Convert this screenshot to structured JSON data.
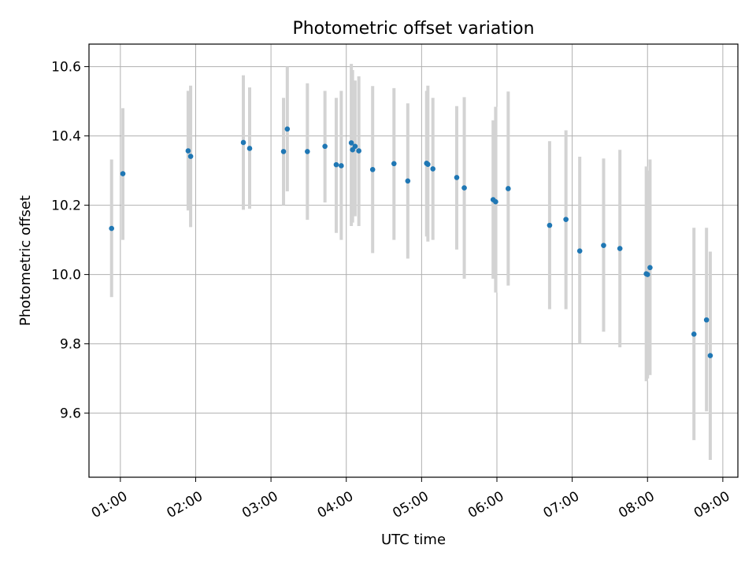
{
  "chart_data": {
    "type": "scatter",
    "title": "Photometric offset variation",
    "xlabel": "UTC time",
    "ylabel": "Photometric offset",
    "x_ticks": [
      "01:00",
      "02:00",
      "03:00",
      "04:00",
      "05:00",
      "06:00",
      "07:00",
      "08:00",
      "09:00"
    ],
    "y_ticks": [
      "9.6",
      "9.8",
      "10.0",
      "10.2",
      "10.4",
      "10.6"
    ],
    "xlim": [
      "00:35",
      "09:12"
    ],
    "ylim": [
      9.415,
      10.665
    ],
    "grid": true,
    "colors": {
      "points": "#1f77b4",
      "error_bars": "#d3d3d3",
      "grid": "#b0b0b0"
    },
    "points": [
      {
        "x": "00:53",
        "y": 10.133,
        "low": 9.935,
        "high": 10.332
      },
      {
        "x": "01:02",
        "y": 10.291,
        "low": 10.1,
        "high": 10.48
      },
      {
        "x": "01:54",
        "y": 10.357,
        "low": 10.185,
        "high": 10.53
      },
      {
        "x": "01:56",
        "y": 10.341,
        "low": 10.137,
        "high": 10.545
      },
      {
        "x": "02:38",
        "y": 10.381,
        "low": 10.187,
        "high": 10.575
      },
      {
        "x": "02:43",
        "y": 10.364,
        "low": 10.19,
        "high": 10.54
      },
      {
        "x": "03:10",
        "y": 10.355,
        "low": 10.2,
        "high": 10.51
      },
      {
        "x": "03:13",
        "y": 10.42,
        "low": 10.24,
        "high": 10.6
      },
      {
        "x": "03:29",
        "y": 10.355,
        "low": 10.158,
        "high": 10.552
      },
      {
        "x": "03:43",
        "y": 10.37,
        "low": 10.208,
        "high": 10.53
      },
      {
        "x": "03:52",
        "y": 10.317,
        "low": 10.12,
        "high": 10.51
      },
      {
        "x": "03:56",
        "y": 10.314,
        "low": 10.1,
        "high": 10.53
      },
      {
        "x": "04:04",
        "y": 10.38,
        "low": 10.14,
        "high": 10.608
      },
      {
        "x": "04:05",
        "y": 10.36,
        "low": 10.15,
        "high": 10.59
      },
      {
        "x": "04:07",
        "y": 10.37,
        "low": 10.168,
        "high": 10.56
      },
      {
        "x": "04:10",
        "y": 10.357,
        "low": 10.14,
        "high": 10.572
      },
      {
        "x": "04:21",
        "y": 10.303,
        "low": 10.062,
        "high": 10.544
      },
      {
        "x": "04:38",
        "y": 10.32,
        "low": 10.1,
        "high": 10.538
      },
      {
        "x": "04:49",
        "y": 10.27,
        "low": 10.046,
        "high": 10.494
      },
      {
        "x": "05:04",
        "y": 10.321,
        "low": 10.11,
        "high": 10.53
      },
      {
        "x": "05:05",
        "y": 10.318,
        "low": 10.095,
        "high": 10.545
      },
      {
        "x": "05:09",
        "y": 10.305,
        "low": 10.1,
        "high": 10.51
      },
      {
        "x": "05:28",
        "y": 10.28,
        "low": 10.072,
        "high": 10.486
      },
      {
        "x": "05:34",
        "y": 10.25,
        "low": 9.988,
        "high": 10.512
      },
      {
        "x": "05:57",
        "y": 10.216,
        "low": 9.988,
        "high": 10.445
      },
      {
        "x": "05:59",
        "y": 10.21,
        "low": 9.948,
        "high": 10.484
      },
      {
        "x": "06:09",
        "y": 10.248,
        "low": 9.968,
        "high": 10.528
      },
      {
        "x": "06:42",
        "y": 10.142,
        "low": 9.9,
        "high": 10.385
      },
      {
        "x": "06:55",
        "y": 10.159,
        "low": 9.9,
        "high": 10.416
      },
      {
        "x": "07:06",
        "y": 10.068,
        "low": 9.8,
        "high": 10.34
      },
      {
        "x": "07:25",
        "y": 10.084,
        "low": 9.835,
        "high": 10.335
      },
      {
        "x": "07:38",
        "y": 10.075,
        "low": 9.79,
        "high": 10.36
      },
      {
        "x": "07:59",
        "y": 10.002,
        "low": 9.692,
        "high": 10.312
      },
      {
        "x": "08:00",
        "y": 10.0,
        "low": 9.7,
        "high": 10.3
      },
      {
        "x": "08:02",
        "y": 10.02,
        "low": 9.71,
        "high": 10.332
      },
      {
        "x": "08:37",
        "y": 9.828,
        "low": 9.522,
        "high": 10.135
      },
      {
        "x": "08:47",
        "y": 9.869,
        "low": 9.605,
        "high": 10.135
      },
      {
        "x": "08:50",
        "y": 9.766,
        "low": 9.465,
        "high": 10.066
      }
    ]
  }
}
